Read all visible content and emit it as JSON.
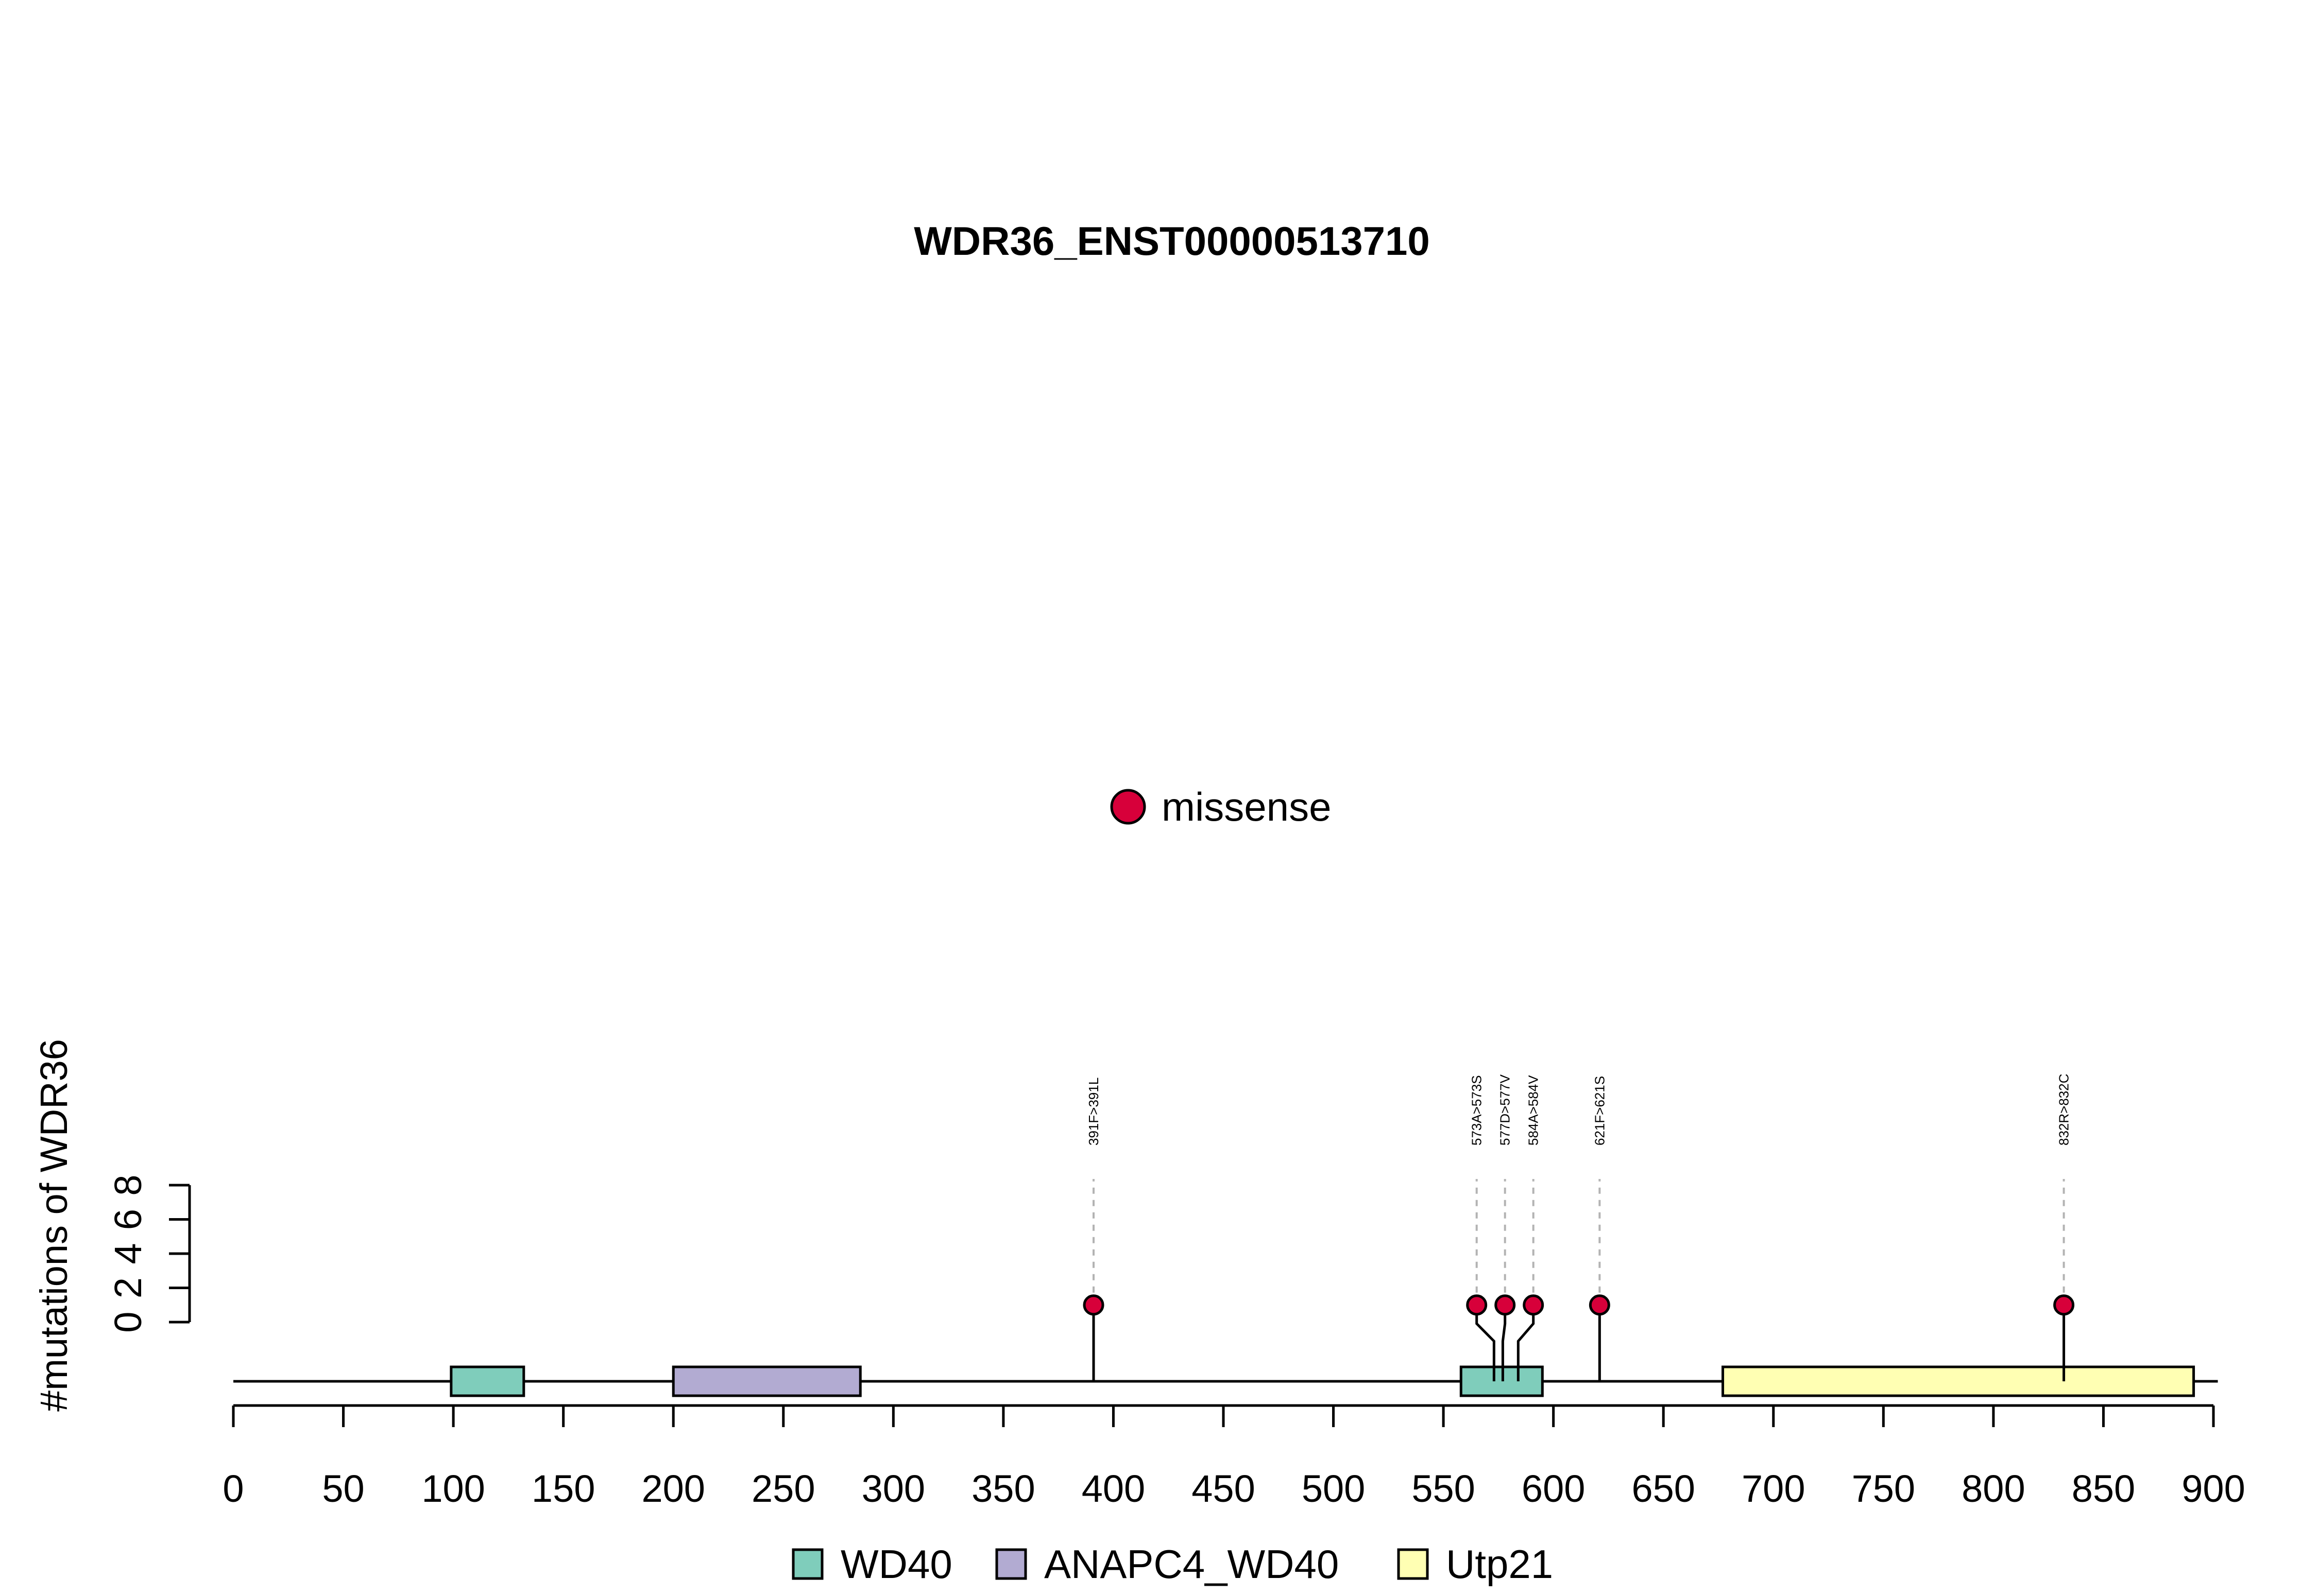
{
  "chart_data": {
    "type": "lollipop",
    "title": "WDR36_ENST00000513710",
    "ylabel": "#mutations of WDR36",
    "y_ticks": [
      "0",
      "2",
      "4",
      "6",
      "8"
    ],
    "ylim": [
      0,
      8
    ],
    "x_ticks": [
      "0",
      "50",
      "100",
      "150",
      "200",
      "250",
      "300",
      "350",
      "400",
      "450",
      "500",
      "550",
      "600",
      "650",
      "700",
      "750",
      "800",
      "850",
      "900"
    ],
    "xlim": [
      0,
      900
    ],
    "protein_length": 902,
    "domains": [
      {
        "name": "WD40",
        "start": 99,
        "end": 132,
        "color": "#7fcdbb"
      },
      {
        "name": "ANAPC4_WD40",
        "start": 200,
        "end": 285,
        "color": "#b2abd2"
      },
      {
        "name": "WD40",
        "start": 558,
        "end": 595,
        "color": "#7fcdbb"
      },
      {
        "name": "Utp21",
        "start": 677,
        "end": 891,
        "color": "#ffffb3"
      }
    ],
    "domain_legend": [
      {
        "label": "WD40",
        "color": "#7fcdbb"
      },
      {
        "label": "ANAPC4_WD40",
        "color": "#b2abd2"
      },
      {
        "label": "Utp21",
        "color": "#ffffb3"
      }
    ],
    "mutation_legend": {
      "label": "missense",
      "color": "#d7003a"
    },
    "mutations": [
      {
        "position": 391,
        "count": 1,
        "label": "391F>391L",
        "type": "missense"
      },
      {
        "position": 573,
        "count": 1,
        "label": "573A>573S",
        "type": "missense"
      },
      {
        "position": 577,
        "count": 1,
        "label": "577D>577V",
        "type": "missense"
      },
      {
        "position": 584,
        "count": 1,
        "label": "584A>584V",
        "type": "missense"
      },
      {
        "position": 621,
        "count": 1,
        "label": "621F>621S",
        "type": "missense"
      },
      {
        "position": 832,
        "count": 1,
        "label": "832R>832C",
        "type": "missense"
      }
    ]
  }
}
